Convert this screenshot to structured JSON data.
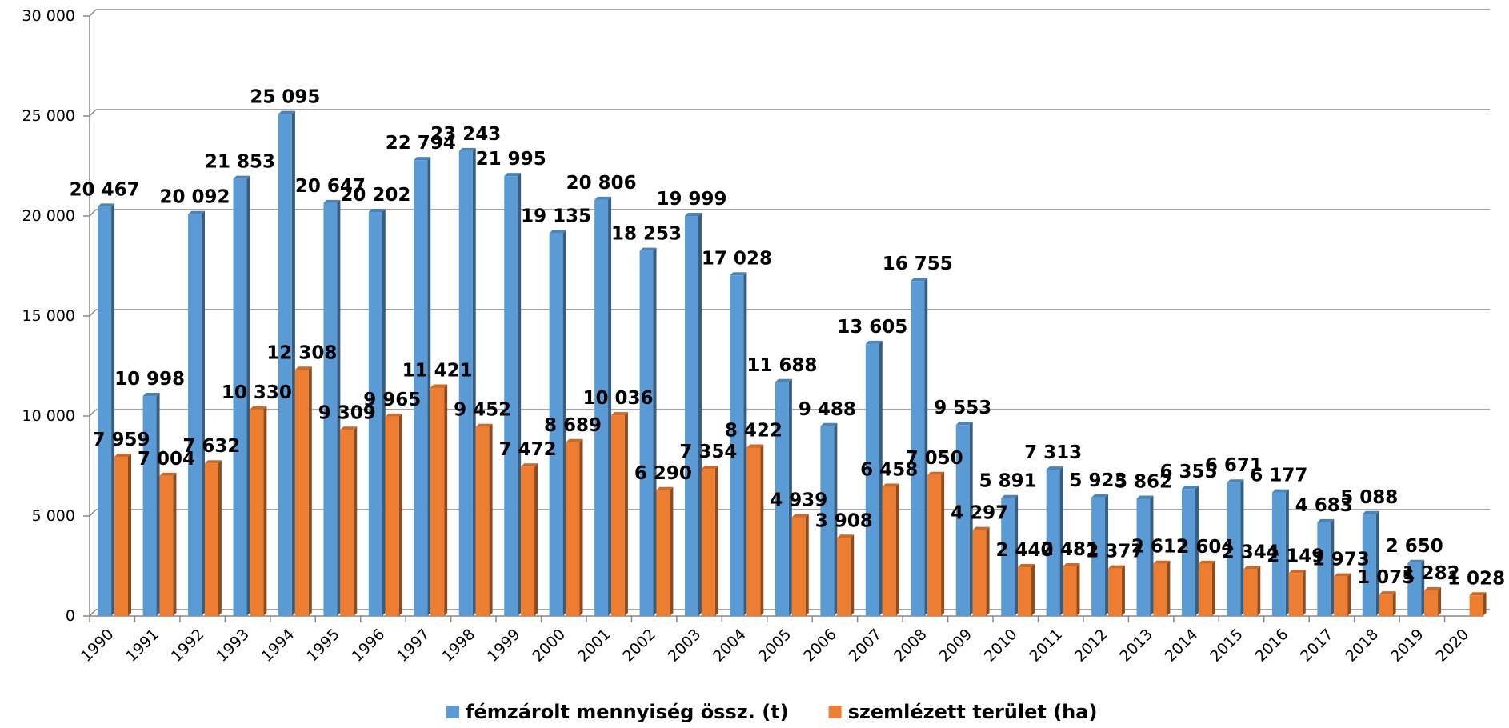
{
  "chart_data": {
    "type": "bar",
    "categories": [
      "1990",
      "1991",
      "1992",
      "1993",
      "1994",
      "1995",
      "1996",
      "1997",
      "1998",
      "1999",
      "2000",
      "2001",
      "2002",
      "2003",
      "2004",
      "2005",
      "2006",
      "2007",
      "2008",
      "2009",
      "2010",
      "2011",
      "2012",
      "2013",
      "2014",
      "2015",
      "2016",
      "2017",
      "2018",
      "2019",
      "2020"
    ],
    "series": [
      {
        "name": "fémzárolt mennyiség össz. (t)",
        "color": "#5b9bd5",
        "values": [
          20467,
          10998,
          20092,
          21853,
          25095,
          20647,
          20202,
          22794,
          23243,
          21995,
          19135,
          20806,
          18253,
          19999,
          17028,
          11688,
          9488,
          13605,
          16755,
          9553,
          5891,
          7313,
          5923,
          5862,
          6355,
          6671,
          6177,
          4683,
          5088,
          2650,
          null
        ],
        "value_labels": [
          "20 467",
          "10 998",
          "20 092",
          "21 853",
          "25 095",
          "20 647",
          "20 202",
          "22 794",
          "23 243",
          "21 995",
          "19 135",
          "20 806",
          "18 253",
          "19 999",
          "17 028",
          "11 688",
          "9 488",
          "13 605",
          "16 755",
          "9 553",
          "5 891",
          "7 313",
          "5 923",
          "5 862",
          "6 355",
          "6 671",
          "6 177",
          "4 683",
          "5 088",
          "2 650",
          null
        ]
      },
      {
        "name": "szemlézett terület (ha)",
        "color": "#ed7d31",
        "values": [
          7959,
          7004,
          7632,
          10330,
          12308,
          9309,
          9965,
          11421,
          9452,
          7472,
          8689,
          10036,
          6290,
          7354,
          8422,
          4939,
          3908,
          6458,
          7050,
          4297,
          2440,
          2481,
          2377,
          2612,
          2604,
          2344,
          2149,
          1973,
          1075,
          1282,
          1028
        ],
        "value_labels": [
          "7 959",
          "7 004",
          "7 632",
          "10 330",
          "12 308",
          "9 309",
          "9 965",
          "11 421",
          "9 452",
          "7 472",
          "8 689",
          "10 036",
          "6 290",
          "7 354",
          "8 422",
          "4 939",
          "3 908",
          "6 458",
          "7 050",
          "4 297",
          "2 440",
          "2 481",
          "2 377",
          "2 612",
          "2 604",
          "2 344",
          "2 149",
          "1 973",
          "1 075",
          "1 282",
          "1 028"
        ]
      }
    ],
    "ylim": [
      0,
      30000
    ],
    "yticks": [
      0,
      {
        "value": 5000,
        "label": "5 000"
      },
      {
        "value": 10000,
        "label": "10 000"
      },
      {
        "value": 15000,
        "label": "15 000"
      },
      {
        "value": 20000,
        "label": "20 000"
      },
      {
        "value": 25000,
        "label": "25 000"
      },
      {
        "value": 30000,
        "label": "30 000"
      }
    ],
    "grid": true,
    "legend": "bottom"
  }
}
